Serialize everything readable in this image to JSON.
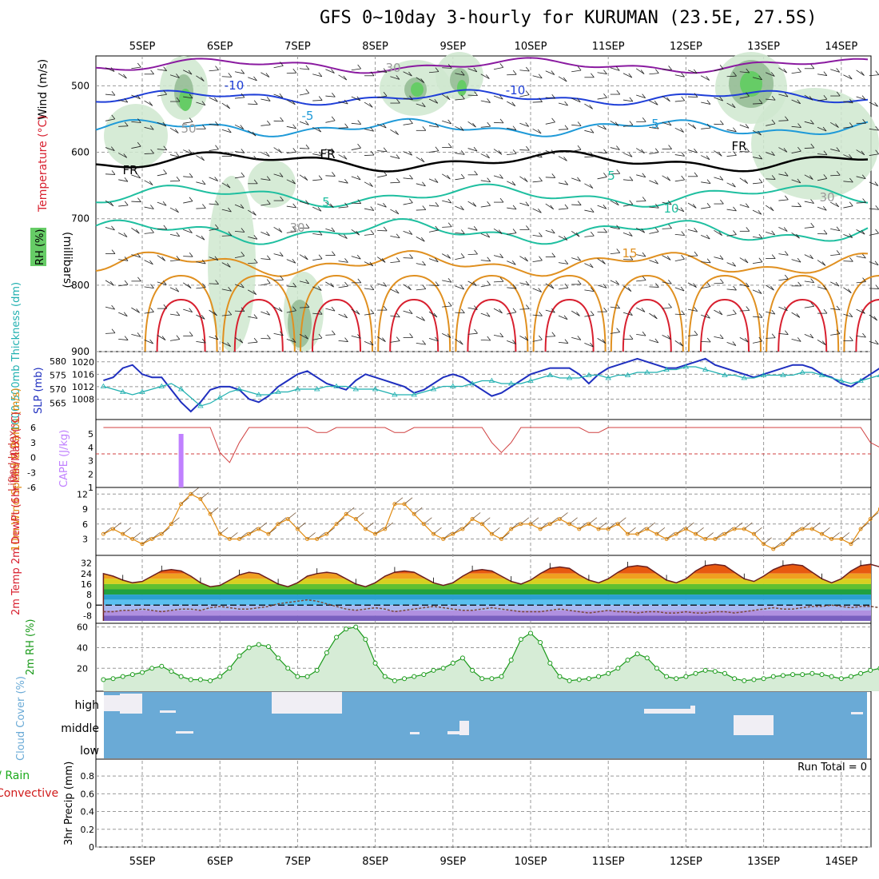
{
  "title": "GFS 0~10day 3-hourly for KURUMAN (23.5E, 27.5S)",
  "colors": {
    "grid": "#999999",
    "rh_fill": "#cfe8cf",
    "rh_dark": "#8fb88f",
    "rh_green": "#66cc66",
    "temp_purple": "#8a1aa0",
    "temp_blue": "#1f3fd8",
    "temp_cyan": "#1f9ad8",
    "temp_teal": "#1fbfa0",
    "temp_orange": "#e09020",
    "temp_red": "#d8202f",
    "slp": "#1f2fbf",
    "thickness": "#20b0b0",
    "cape": "#c080ff",
    "lifted": "#d04040",
    "wind": "#e08a10",
    "rh2m": "#1a9a1a",
    "cloud": "#6aaad6",
    "precip_green": "#1aaa1a",
    "precip_red": "#d01a1a"
  },
  "chart_data": [
    {
      "type": "contour",
      "name": "upper-air",
      "xticks": [
        "5SEP",
        "6SEP",
        "7SEP",
        "8SEP",
        "9SEP",
        "10SEP",
        "11SEP",
        "12SEP",
        "13SEP",
        "14SEP"
      ],
      "yticks": [
        500,
        600,
        700,
        800,
        900
      ],
      "ylabel": "(millibars)",
      "legend": [
        "Wind (m/s)",
        "Temperature (°C)",
        "RH (%)"
      ],
      "contour_labels": [
        "-10",
        "-10",
        "-5",
        "5",
        "FR",
        "FR",
        "FR",
        "5",
        "5",
        "10",
        "15",
        "30",
        "30",
        "50",
        "30"
      ]
    },
    {
      "type": "line",
      "name": "pressure",
      "ylabel_left": "1000-500mb Thickness (dm)",
      "ylabel_right": "SLP (mb)",
      "yticks_left": [
        565,
        570,
        575,
        580
      ],
      "yticks_right": [
        1008,
        1012,
        1016,
        1020
      ],
      "slp": [
        1014,
        1015,
        1018,
        1019,
        1016,
        1015,
        1015,
        1011,
        1007,
        1004,
        1007,
        1011,
        1012,
        1012,
        1011,
        1008,
        1007,
        1009,
        1012,
        1014,
        1016,
        1017,
        1015,
        1013,
        1012,
        1011,
        1014,
        1016,
        1015,
        1014,
        1013,
        1012,
        1010,
        1011,
        1013,
        1015,
        1016,
        1015,
        1013,
        1011,
        1009,
        1010,
        1012,
        1014,
        1016,
        1017,
        1018,
        1018,
        1018,
        1016,
        1013,
        1016,
        1018,
        1019,
        1020,
        1021,
        1020,
        1019,
        1018,
        1018,
        1019,
        1020,
        1021,
        1019,
        1018,
        1017,
        1016,
        1015,
        1016,
        1017,
        1018,
        1019,
        1019,
        1018,
        1016,
        1015,
        1013,
        1012,
        1014,
        1016,
        1018,
        1017,
        1016,
        1015,
        1014,
        1015,
        1017,
        1018
      ],
      "thickness": [
        571,
        570,
        569,
        568,
        569,
        570,
        571,
        572,
        570,
        567,
        564,
        565,
        567,
        569,
        570,
        569,
        568,
        568,
        569,
        569,
        570,
        570,
        570,
        571,
        571,
        571,
        570,
        570,
        570,
        569,
        568,
        568,
        568,
        569,
        570,
        571,
        571,
        571,
        572,
        573,
        573,
        572,
        572,
        572,
        573,
        574,
        575,
        574,
        574,
        574,
        575,
        575,
        574,
        575,
        575,
        576,
        576,
        576,
        577,
        577,
        578,
        578,
        577,
        576,
        575,
        575,
        574,
        574,
        575,
        575,
        575,
        575,
        576,
        576,
        575,
        574,
        573,
        572,
        573,
        574,
        575,
        576,
        576,
        575,
        574,
        573,
        573,
        573
      ]
    },
    {
      "type": "line",
      "name": "stability",
      "ylabel_left": "Lifted Index",
      "ylabel_right": "CAPE (J/kg)",
      "yticks_left": [
        "6",
        "3",
        "0",
        "-3",
        "-6"
      ],
      "yticks_right": [
        1,
        2,
        3,
        4,
        5
      ],
      "lifted_index": [
        6,
        6,
        6,
        6,
        6,
        6,
        6,
        6,
        6,
        6,
        6,
        6,
        1,
        -1,
        3,
        6,
        6,
        6,
        6,
        6,
        6,
        6,
        5,
        5,
        6,
        6,
        6,
        6,
        6,
        6,
        5,
        5,
        6,
        6,
        6,
        6,
        6,
        6,
        6,
        6,
        3,
        1,
        3,
        6,
        6,
        6,
        6,
        6,
        6,
        6,
        5,
        5,
        6,
        6,
        6,
        6,
        6,
        6,
        6,
        6,
        6,
        6,
        6,
        6,
        6,
        6,
        6,
        6,
        6,
        6,
        6,
        6,
        6,
        6,
        6,
        6,
        6,
        6,
        6,
        3,
        2,
        6,
        6,
        6,
        6,
        6,
        6,
        6
      ],
      "cape": [
        {
          "day": 5.5,
          "value": 5
        }
      ]
    },
    {
      "type": "line",
      "name": "wind10m",
      "ylabel": "10m Wind Speed & Barbs (m/s)",
      "yticks": [
        3,
        6,
        9,
        12
      ],
      "speed": [
        4,
        5,
        4,
        3,
        2,
        3,
        4,
        6,
        10,
        12,
        11,
        8,
        4,
        3,
        3,
        4,
        5,
        4,
        6,
        7,
        5,
        3,
        3,
        4,
        6,
        8,
        7,
        5,
        4,
        5,
        10,
        10,
        8,
        6,
        4,
        3,
        4,
        5,
        7,
        6,
        4,
        3,
        5,
        6,
        6,
        5,
        6,
        7,
        6,
        5,
        6,
        5,
        5,
        6,
        4,
        4,
        5,
        4,
        3,
        4,
        5,
        4,
        3,
        3,
        4,
        5,
        5,
        4,
        2,
        1,
        2,
        4,
        5,
        5,
        4,
        3,
        3,
        2,
        5,
        7,
        9,
        7,
        5,
        4,
        5,
        6,
        7,
        5
      ]
    },
    {
      "type": "area",
      "name": "temp2m",
      "ylabel": "2m Temp 2m DewPt (6hr Min/Max) (°C)",
      "yticks": [
        -8,
        0,
        8,
        16,
        24,
        32
      ],
      "temp": [
        24,
        22,
        19,
        17,
        18,
        22,
        26,
        27,
        26,
        22,
        17,
        14,
        15,
        19,
        23,
        25,
        24,
        20,
        16,
        14,
        17,
        22,
        24,
        25,
        24,
        20,
        16,
        14,
        17,
        22,
        25,
        26,
        25,
        21,
        17,
        15,
        17,
        22,
        26,
        27,
        26,
        22,
        18,
        16,
        19,
        24,
        28,
        29,
        28,
        23,
        19,
        17,
        20,
        25,
        29,
        30,
        29,
        24,
        19,
        17,
        20,
        26,
        30,
        31,
        30,
        25,
        20,
        18,
        22,
        27,
        30,
        31,
        30,
        25,
        20,
        17,
        20,
        26,
        30,
        31,
        29,
        24,
        19,
        17,
        19,
        22,
        24,
        26
      ],
      "dewpoint": [
        -5,
        -5,
        -4,
        -4,
        -3,
        -4,
        -5,
        -4,
        -3,
        -3,
        -4,
        -2,
        -1,
        -2,
        -3,
        -3,
        -2,
        -1,
        1,
        2,
        3,
        4,
        3,
        1,
        -1,
        -3,
        -4,
        -3,
        -2,
        -3,
        -5,
        -4,
        -3,
        -2,
        -1,
        -2,
        -3,
        -4,
        -4,
        -3,
        -2,
        -3,
        -4,
        -5,
        -5,
        -5,
        -4,
        -3,
        -4,
        -5,
        -6,
        -5,
        -4,
        -5,
        -5,
        -6,
        -5,
        -5,
        -6,
        -6,
        -5,
        -6,
        -6,
        -5,
        -5,
        -6,
        -5,
        -4,
        -3,
        -2,
        -3,
        -3,
        -2,
        -1,
        -1,
        0,
        -1,
        -2,
        -1,
        -1,
        -2,
        -3,
        -2,
        -1,
        -2,
        -2,
        -1,
        -1
      ]
    },
    {
      "type": "area",
      "name": "rh2m",
      "ylabel": "2m RH (%)",
      "yticks": [
        20,
        40,
        60
      ],
      "rh": [
        9,
        10,
        12,
        14,
        16,
        20,
        22,
        17,
        12,
        9,
        9,
        8,
        12,
        20,
        32,
        40,
        43,
        41,
        30,
        20,
        12,
        12,
        18,
        35,
        50,
        58,
        60,
        48,
        25,
        12,
        8,
        10,
        12,
        14,
        18,
        20,
        25,
        30,
        18,
        10,
        10,
        12,
        28,
        48,
        54,
        45,
        25,
        12,
        8,
        9,
        10,
        12,
        15,
        20,
        28,
        34,
        30,
        20,
        12,
        10,
        12,
        15,
        18,
        17,
        15,
        10,
        8,
        9,
        10,
        12,
        13,
        14,
        14,
        15,
        14,
        12,
        10,
        12,
        15,
        18,
        20,
        22,
        16,
        12,
        10,
        14,
        20,
        28
      ]
    },
    {
      "type": "bar",
      "name": "cloud",
      "ylabel": "Cloud Cover (%)",
      "levels": [
        "high",
        "middle",
        "low"
      ]
    },
    {
      "type": "bar",
      "name": "precip",
      "ylabel": "3hr Precip (mm)",
      "legend": [
        "Total / Rain",
        "Convective"
      ],
      "yticks": [
        0,
        0.2,
        0.4,
        0.6,
        0.8
      ],
      "run_total_label": "Run Total = 0",
      "values": []
    }
  ]
}
